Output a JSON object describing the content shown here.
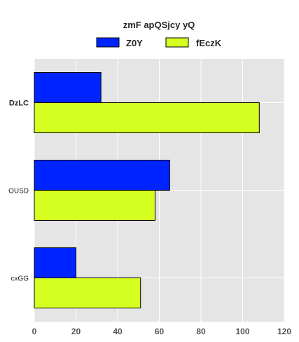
{
  "chart_data": {
    "type": "bar",
    "orientation": "horizontal",
    "title": "zmF apQSjcy yQ",
    "categories": [
      "DzLC",
      "OUSD",
      "cxGG"
    ],
    "series": [
      {
        "name": "Z0Y",
        "color": "#0024ff",
        "values": [
          32,
          65,
          20
        ]
      },
      {
        "name": "fEczK",
        "color": "#d4ff21",
        "values": [
          108,
          58,
          51
        ]
      }
    ],
    "xlim": [
      0,
      120
    ],
    "xticks": [
      0,
      20,
      40,
      60,
      80,
      100,
      120
    ],
    "grid": true,
    "legend_position": "top-center",
    "background": "#e5e5e5"
  }
}
